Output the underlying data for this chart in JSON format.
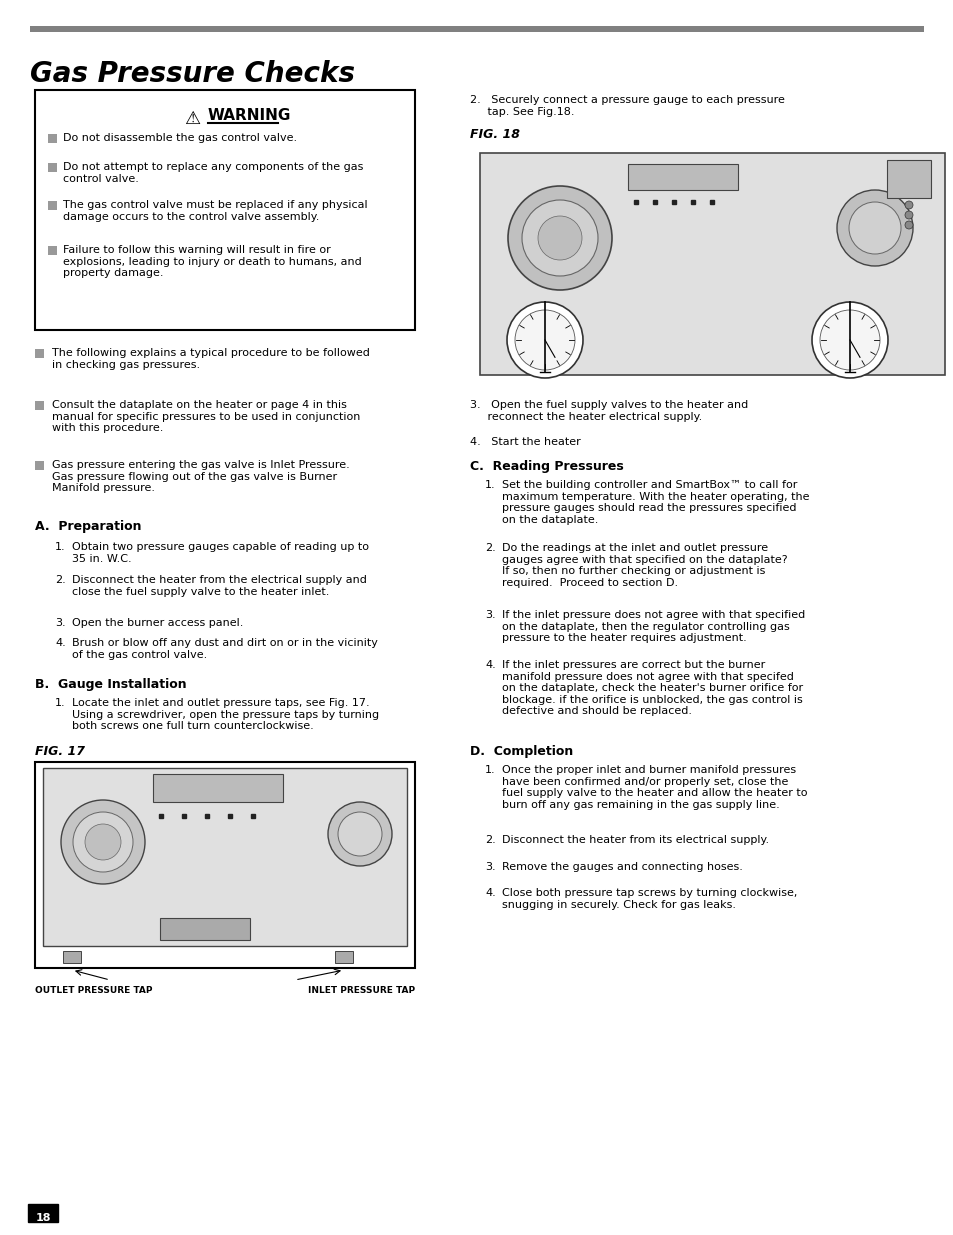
{
  "title": "Gas Pressure Checks",
  "title_fontsize": 20,
  "top_bar_color": "#808080",
  "background_color": "#ffffff",
  "page_number": "18",
  "warning_bullets": [
    "Do not disassemble the gas control valve.",
    "Do not attempt to replace any components of the gas\ncontrol valve.",
    "The gas control valve must be replaced if any physical\ndamage occurs to the control valve assembly.",
    "Failure to follow this warning will result in fire or\nexplosions, leading to injury or death to humans, and\nproperty damage."
  ],
  "left_bullets": [
    "The following explains a typical procedure to be followed\nin checking gas pressures.",
    "Consult the dataplate on the heater or page 4 in this\nmanual for specific pressures to be used in conjunction\nwith this procedure.",
    "Gas pressure entering the gas valve is Inlet Pressure.\nGas pressure flowing out of the gas valve is Burner\nManifold pressure."
  ],
  "section_a_title": "A.  Preparation",
  "section_a_items": [
    "Obtain two pressure gauges capable of reading up to\n35 in. W.C.",
    "Disconnect the heater from the electrical supply and\nclose the fuel supply valve to the heater inlet.",
    "Open the burner access panel.",
    "Brush or blow off any dust and dirt on or in the vicinity\nof the gas control valve."
  ],
  "section_b_title": "B.  Gauge Installation",
  "section_b_items": [
    "Locate the inlet and outlet pressure taps, see Fig. 17.\nUsing a screwdriver, open the pressure taps by turning\nboth screws one full turn counterclockwise."
  ],
  "fig17_label": "FIG. 17",
  "right_step2": "2.   Securely connect a pressure gauge to each pressure\n     tap. See Fig.18.",
  "fig18_label": "FIG. 18",
  "right_step3": "3.   Open the fuel supply valves to the heater and\n     reconnect the heater electrical supply.",
  "right_step4": "4.   Start the heater",
  "section_c_title": "C.  Reading Pressures",
  "section_c_items": [
    "Set the building controller and SmartBox™ to call for\nmaximum temperature. With the heater operating, the\npressure gauges should read the pressures specified\non the dataplate.",
    "Do the readings at the inlet and outlet pressure\ngauges agree with that specified on the dataplate?\nIf so, then no further checking or adjustment is\nrequired.  Proceed to section D.",
    "If the inlet pressure does not agree with that specified\non the dataplate, then the regulator controlling gas\npressure to the heater requires adjustment.",
    "If the inlet pressures are correct but the burner\nmanifold pressure does not agree with that specifed\non the dataplate, check the heater's burner orifice for\nblockage. if the orifice is unblocked, the gas control is\ndefective and should be replaced."
  ],
  "section_d_title": "D.  Completion",
  "section_d_items": [
    "Once the proper inlet and burner manifold pressures\nhave been confirmed and/or properly set, close the\nfuel supply valve to the heater and allow the heater to\nburn off any gas remaining in the gas supply line.",
    "Disconnect the heater from its electrical supply.",
    "Remove the gauges and connecting hoses.",
    "Close both pressure tap screws by turning clockwise,\nsnugging in securely. Check for gas leaks."
  ],
  "fig17_caption_left": "OUTLET PRESSURE TAP",
  "fig17_caption_right": "INLET PRESSURE TAP"
}
